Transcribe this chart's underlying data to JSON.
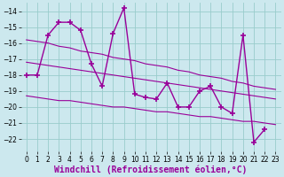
{
  "x": [
    0,
    1,
    2,
    3,
    4,
    5,
    6,
    7,
    8,
    9,
    10,
    11,
    12,
    13,
    14,
    15,
    16,
    17,
    18,
    19,
    20,
    21,
    22,
    23
  ],
  "y_main": [
    -18.0,
    -18.0,
    -15.5,
    -14.7,
    -14.7,
    -15.2,
    -17.3,
    -18.7,
    -15.4,
    -13.8,
    -19.2,
    -19.4,
    -19.5,
    -18.5,
    -20.0,
    -20.0,
    -19.0,
    -18.7,
    -20.0,
    -20.4,
    -15.5,
    -22.2,
    -21.4,
    null
  ],
  "nulls": [
    false,
    false,
    false,
    false,
    false,
    false,
    false,
    false,
    false,
    false,
    false,
    false,
    false,
    false,
    false,
    false,
    false,
    false,
    false,
    false,
    false,
    false,
    false,
    true
  ],
  "y_line1": [
    -15.8,
    -15.9,
    -16.0,
    -16.2,
    -16.3,
    -16.5,
    -16.6,
    -16.7,
    -16.9,
    -17.0,
    -17.1,
    -17.3,
    -17.4,
    -17.5,
    -17.7,
    -17.8,
    -18.0,
    -18.1,
    -18.2,
    -18.4,
    -18.5,
    -18.7,
    -18.8,
    -18.9
  ],
  "y_line2": [
    -17.2,
    -17.3,
    -17.4,
    -17.5,
    -17.6,
    -17.7,
    -17.8,
    -17.9,
    -18.0,
    -18.1,
    -18.2,
    -18.3,
    -18.4,
    -18.5,
    -18.6,
    -18.7,
    -18.8,
    -18.9,
    -19.0,
    -19.1,
    -19.2,
    -19.3,
    -19.4,
    -19.5
  ],
  "y_line3": [
    -19.3,
    -19.4,
    -19.5,
    -19.6,
    -19.6,
    -19.7,
    -19.8,
    -19.9,
    -20.0,
    -20.0,
    -20.1,
    -20.2,
    -20.3,
    -20.3,
    -20.4,
    -20.5,
    -20.6,
    -20.6,
    -20.7,
    -20.8,
    -20.9,
    -20.9,
    -21.0,
    -21.1
  ],
  "color": "#990099",
  "bg_color": "#cce8ee",
  "grid_color": "#99cccc",
  "xlim": [
    -0.5,
    23.5
  ],
  "ylim": [
    -22.8,
    -13.5
  ],
  "yticks": [
    -14,
    -15,
    -16,
    -17,
    -18,
    -19,
    -20,
    -21,
    -22
  ],
  "xticks": [
    0,
    1,
    2,
    3,
    4,
    5,
    6,
    7,
    8,
    9,
    10,
    11,
    12,
    13,
    14,
    15,
    16,
    17,
    18,
    19,
    20,
    21,
    22,
    23
  ],
  "xlabel": "Windchill (Refroidissement éolien,°C)",
  "xlabel_fontsize": 7,
  "tick_fontsize": 5.5
}
